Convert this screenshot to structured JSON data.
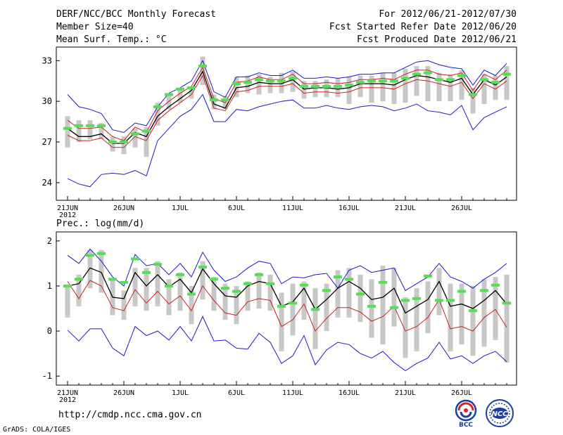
{
  "header": {
    "title": "DERF/NCC/BCC Monthly Forecast",
    "member_size": "Member Size=40",
    "variable": "Mean Surf. Temp.: °C",
    "period": "For 2012/06/21-2012/07/30",
    "started": "Fcst Started Refer Date 2012/06/20",
    "produced": "Fcst Produced Date 2012/06/21"
  },
  "footer": {
    "url": "http://cmdp.ncc.cma.gov.cn",
    "grads": "GrADS: COLA/IGES",
    "logo_left_text": "BCC",
    "logo_right_text": "NCC"
  },
  "colors": {
    "box": "#c8c8c8",
    "median": "#55dd55",
    "mean": "#000000",
    "upper": "#1a1acc",
    "lower": "#1a1acc",
    "inner": "#cc2222"
  },
  "chart_data": [
    {
      "type": "line",
      "panel": "temperature",
      "title": "Mean Surf. Temp.: °C",
      "ylim": [
        22.7,
        34.0
      ],
      "yticks": [
        24,
        27,
        30,
        33
      ],
      "ytick_labels": [
        "24",
        "27",
        "30",
        "33"
      ],
      "xtick_labels": [
        "21JUN",
        "26JUN",
        "1JUL",
        "6JUL",
        "11JUL",
        "16JUL",
        "21JUL",
        "26JUL"
      ],
      "xtick_days": [
        1,
        6,
        11,
        16,
        21,
        26,
        31,
        36
      ],
      "year_label": "2012",
      "days": 40,
      "series": [
        {
          "name": "max",
          "values": [
            30.5,
            29.6,
            29.4,
            29.1,
            27.9,
            27.7,
            28.4,
            28.2,
            29.6,
            30.6,
            31.0,
            31.5,
            33.0,
            30.7,
            30.3,
            31.8,
            31.8,
            32.1,
            31.9,
            31.9,
            32.3,
            31.7,
            31.7,
            31.8,
            31.7,
            31.8,
            32.0,
            32.0,
            32.1,
            32.1,
            32.5,
            32.9,
            33.0,
            32.7,
            32.5,
            32.4,
            31.2,
            32.3,
            31.9,
            32.8
          ]
        },
        {
          "name": "p90",
          "values": [
            28.6,
            28.0,
            28.0,
            28.1,
            27.4,
            27.1,
            28.1,
            27.7,
            29.3,
            30.0,
            30.6,
            31.1,
            32.5,
            30.2,
            29.9,
            31.4,
            31.5,
            31.8,
            31.6,
            31.6,
            32.0,
            31.3,
            31.3,
            31.4,
            31.3,
            31.4,
            31.6,
            31.6,
            31.7,
            31.6,
            32.0,
            32.3,
            32.3,
            32.0,
            31.9,
            32.1,
            30.8,
            32.0,
            31.6,
            32.3
          ]
        },
        {
          "name": "mean",
          "values": [
            28.0,
            27.4,
            27.4,
            27.6,
            26.9,
            26.9,
            27.7,
            27.4,
            28.9,
            29.6,
            30.2,
            30.8,
            32.2,
            29.8,
            29.5,
            31.0,
            31.1,
            31.4,
            31.3,
            31.3,
            31.6,
            30.9,
            31.0,
            31.0,
            30.9,
            31.0,
            31.3,
            31.3,
            31.3,
            31.2,
            31.6,
            31.9,
            31.8,
            31.6,
            31.4,
            31.7,
            30.5,
            31.6,
            31.2,
            31.8
          ]
        },
        {
          "name": "p10",
          "values": [
            27.5,
            27.1,
            27.1,
            27.3,
            26.6,
            26.6,
            27.4,
            27.1,
            28.6,
            29.3,
            29.9,
            30.5,
            31.9,
            29.5,
            29.3,
            30.7,
            30.8,
            31.1,
            31.1,
            31.1,
            31.3,
            30.6,
            30.7,
            30.7,
            30.6,
            30.7,
            31.0,
            31.0,
            31.0,
            30.9,
            31.3,
            31.6,
            31.5,
            31.3,
            31.1,
            31.4,
            30.2,
            31.3,
            30.9,
            31.5
          ]
        },
        {
          "name": "min",
          "values": [
            24.3,
            23.9,
            23.7,
            24.6,
            24.7,
            24.6,
            24.9,
            24.5,
            27.1,
            28.0,
            28.9,
            29.4,
            30.5,
            28.5,
            28.5,
            29.4,
            29.3,
            29.6,
            29.8,
            30.0,
            30.1,
            29.5,
            29.5,
            29.7,
            29.5,
            29.4,
            29.6,
            29.7,
            29.6,
            29.3,
            29.5,
            29.8,
            29.3,
            29.2,
            29.0,
            29.7,
            27.9,
            28.8,
            29.2,
            29.6
          ]
        },
        {
          "name": "box_high",
          "values": [
            28.9,
            28.6,
            28.6,
            28.4,
            27.4,
            27.4,
            28.0,
            28.1,
            29.9,
            30.6,
            30.9,
            31.1,
            33.3,
            30.5,
            30.4,
            31.8,
            31.9,
            32.0,
            31.8,
            32.1,
            32.2,
            31.5,
            31.5,
            31.6,
            31.7,
            31.8,
            31.9,
            31.9,
            32.1,
            32.1,
            32.4,
            32.6,
            32.6,
            32.1,
            32.0,
            32.3,
            31.0,
            32.0,
            31.9,
            32.6
          ]
        },
        {
          "name": "box_low",
          "values": [
            26.6,
            27.0,
            27.2,
            27.2,
            26.3,
            26.1,
            26.6,
            25.9,
            28.2,
            29.4,
            29.9,
            30.2,
            31.2,
            29.4,
            29.4,
            30.3,
            30.6,
            30.5,
            30.6,
            30.6,
            30.7,
            30.2,
            30.3,
            30.3,
            30.3,
            29.8,
            30.3,
            29.9,
            30.0,
            29.8,
            29.9,
            30.4,
            30.0,
            30.0,
            30.0,
            30.1,
            29.1,
            29.8,
            30.1,
            30.1
          ]
        },
        {
          "name": "median",
          "values": [
            28.0,
            28.2,
            28.2,
            28.2,
            27.0,
            27.0,
            27.6,
            27.8,
            29.6,
            30.5,
            30.9,
            31.0,
            32.6,
            30.1,
            30.1,
            31.3,
            31.4,
            31.6,
            31.5,
            31.5,
            31.7,
            31.1,
            31.1,
            31.1,
            31.1,
            31.2,
            31.4,
            31.5,
            31.5,
            31.5,
            31.7,
            32.0,
            32.1,
            31.6,
            31.6,
            31.9,
            30.5,
            31.6,
            31.4,
            32.0
          ]
        }
      ]
    },
    {
      "type": "line",
      "panel": "precipitation",
      "title": "Prec.: log(mm/d)",
      "ylim": [
        -1.2,
        2.2
      ],
      "yticks": [
        -1,
        0,
        1,
        2
      ],
      "ytick_labels": [
        "-1",
        "0",
        "1",
        "2"
      ],
      "xtick_labels": [
        "21JUN",
        "26JUN",
        "1JUL",
        "6JUL",
        "11JUL",
        "16JUL",
        "21JUL",
        "26JUL"
      ],
      "xtick_days": [
        1,
        6,
        11,
        16,
        21,
        26,
        31,
        36
      ],
      "year_label": "2012",
      "days": 40,
      "series": [
        {
          "name": "max",
          "values": [
            1.68,
            1.5,
            1.82,
            1.55,
            1.2,
            1.0,
            1.7,
            1.45,
            1.5,
            1.25,
            1.5,
            1.2,
            1.75,
            1.35,
            1.1,
            1.2,
            1.4,
            1.55,
            1.5,
            1.05,
            1.2,
            1.18,
            1.25,
            1.28,
            0.95,
            1.35,
            1.45,
            1.3,
            1.35,
            1.4,
            0.9,
            1.05,
            1.2,
            1.5,
            1.2,
            1.1,
            0.95,
            1.15,
            1.3,
            1.5
          ]
        },
        {
          "name": "mean",
          "values": [
            1.0,
            1.05,
            1.4,
            1.3,
            0.75,
            0.72,
            1.3,
            1.0,
            1.25,
            0.98,
            1.15,
            0.85,
            1.38,
            1.05,
            0.78,
            0.75,
            1.0,
            1.1,
            1.05,
            0.55,
            0.65,
            0.95,
            0.48,
            0.7,
            0.95,
            1.1,
            0.95,
            0.7,
            0.75,
            0.95,
            0.4,
            0.55,
            0.7,
            1.1,
            0.55,
            0.6,
            0.5,
            0.68,
            0.9,
            0.6
          ]
        },
        {
          "name": "inner",
          "values": [
            1.1,
            0.72,
            1.12,
            1.0,
            0.52,
            0.45,
            0.92,
            0.62,
            0.88,
            0.6,
            0.78,
            0.45,
            1.0,
            0.68,
            0.4,
            0.35,
            0.65,
            0.72,
            0.68,
            0.1,
            0.25,
            0.6,
            0.0,
            0.28,
            0.52,
            0.52,
            0.42,
            0.22,
            0.32,
            0.55,
            0.0,
            0.1,
            0.3,
            0.7,
            0.05,
            0.1,
            0.0,
            0.3,
            0.48,
            0.08
          ]
        },
        {
          "name": "min",
          "values": [
            0.02,
            -0.22,
            0.05,
            0.05,
            -0.38,
            -0.55,
            0.1,
            -0.1,
            0.0,
            -0.2,
            0.1,
            -0.22,
            0.32,
            -0.22,
            -0.2,
            -0.38,
            -0.4,
            -0.05,
            -0.25,
            -0.72,
            -0.55,
            -0.1,
            -0.75,
            -0.42,
            -0.25,
            -0.3,
            -0.5,
            -0.6,
            -0.45,
            -0.7,
            -0.88,
            -0.72,
            -0.6,
            -0.25,
            -0.62,
            -0.55,
            -0.72,
            -0.55,
            -0.45,
            -0.68
          ]
        },
        {
          "name": "box_high",
          "values": [
            1.0,
            1.25,
            1.8,
            1.8,
            1.15,
            0.9,
            1.4,
            1.4,
            1.55,
            1.15,
            1.3,
            1.0,
            1.55,
            1.2,
            1.05,
            1.0,
            1.1,
            1.3,
            1.25,
            0.85,
            1.05,
            1.1,
            0.95,
            1.05,
            1.35,
            1.4,
            1.25,
            1.15,
            1.45,
            1.4,
            0.75,
            0.95,
            1.1,
            1.4,
            1.05,
            1.05,
            1.0,
            1.15,
            1.2,
            1.25
          ]
        },
        {
          "name": "box_low",
          "values": [
            0.3,
            0.55,
            0.95,
            0.85,
            0.35,
            0.25,
            0.55,
            0.45,
            0.55,
            0.35,
            0.45,
            0.15,
            0.7,
            0.45,
            0.25,
            0.15,
            0.45,
            0.5,
            0.45,
            -0.45,
            -0.1,
            0.25,
            -0.4,
            0.0,
            0.3,
            0.3,
            0.2,
            -0.15,
            -0.3,
            0.1,
            -0.6,
            -0.45,
            -0.05,
            0.35,
            -0.45,
            -0.3,
            -0.55,
            -0.35,
            -0.2,
            -0.7
          ]
        },
        {
          "name": "median",
          "values": [
            1.0,
            1.15,
            1.68,
            1.72,
            1.15,
            1.08,
            1.6,
            1.3,
            1.48,
            1.0,
            1.25,
            0.82,
            1.42,
            1.15,
            0.95,
            0.88,
            1.05,
            1.25,
            1.05,
            0.55,
            0.62,
            1.02,
            0.48,
            0.9,
            1.2,
            1.15,
            0.82,
            0.55,
            1.08,
            0.52,
            0.68,
            0.72,
            1.22,
            0.68,
            0.68,
            0.88,
            0.45,
            0.9,
            1.02,
            0.62
          ]
        }
      ]
    }
  ]
}
